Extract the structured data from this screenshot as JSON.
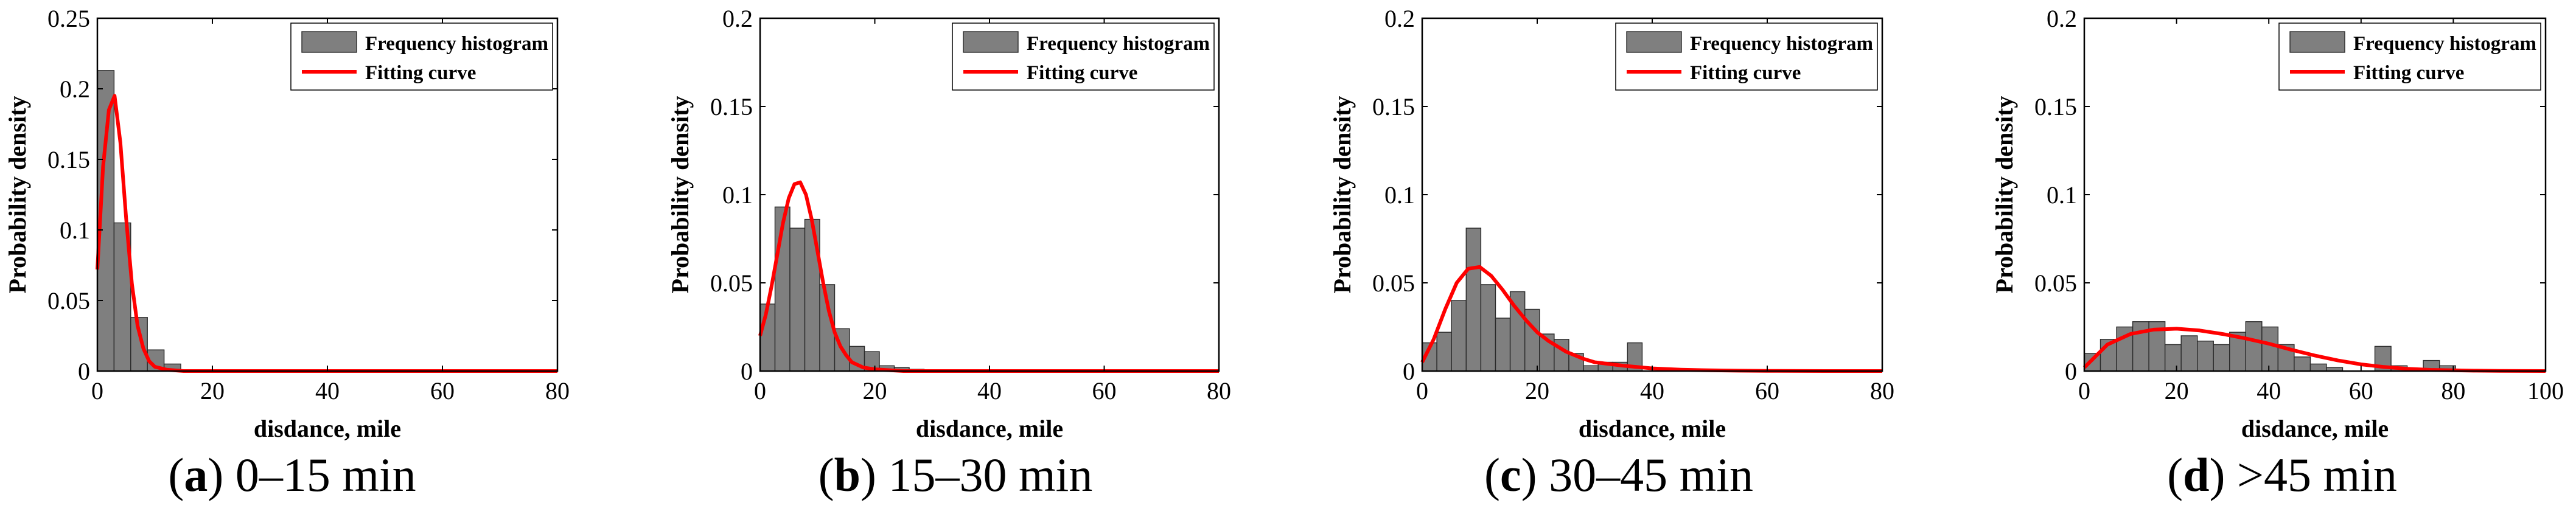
{
  "colors": {
    "bar": "#7f7f7f",
    "bar_edge": "#2a2a2a",
    "curve": "#ff0000",
    "axis": "#000000",
    "background": "#ffffff"
  },
  "chart_data": [
    {
      "type": "bar",
      "title": "",
      "caption_letter": "a",
      "caption_text": " 0–15 min",
      "xlabel": "disdance, mile",
      "ylabel": "Probability density",
      "xlim": [
        0,
        80
      ],
      "ylim": [
        0,
        0.25
      ],
      "xticks": [
        0,
        20,
        40,
        60,
        80
      ],
      "xtick_labels": [
        "0",
        "20",
        "40",
        "60",
        "80"
      ],
      "yticks": [
        0,
        0.05,
        0.1,
        0.15,
        0.2,
        0.25
      ],
      "ytick_labels": [
        "0",
        "0.05",
        "0.1",
        "0.15",
        "0.2",
        "0.25"
      ],
      "legend": {
        "position": "top-right",
        "entries": [
          "Frequency histogram",
          "Fitting curve"
        ]
      },
      "histogram": {
        "bin_width": 2.9,
        "bin_starts": [
          0,
          2.9,
          5.8,
          8.7,
          11.6
        ],
        "values": [
          0.213,
          0.105,
          0.038,
          0.015,
          0.005
        ]
      },
      "fit_curve": {
        "x": [
          0,
          1,
          2,
          3,
          4,
          5,
          6,
          7,
          8,
          9,
          10,
          12,
          15,
          20,
          30,
          40,
          60,
          80
        ],
        "y": [
          0.072,
          0.145,
          0.185,
          0.195,
          0.162,
          0.108,
          0.062,
          0.032,
          0.016,
          0.007,
          0.003,
          0.001,
          0.0,
          0.0,
          0.0,
          0.0,
          0.0,
          0.0
        ]
      }
    },
    {
      "type": "bar",
      "title": "",
      "caption_letter": "b",
      "caption_text": " 15–30 min",
      "xlabel": "disdance, mile",
      "ylabel": "Probability density",
      "xlim": [
        0,
        80
      ],
      "ylim": [
        0,
        0.2
      ],
      "xticks": [
        0,
        20,
        40,
        60,
        80
      ],
      "xtick_labels": [
        "0",
        "20",
        "40",
        "60",
        "80"
      ],
      "yticks": [
        0,
        0.05,
        0.1,
        0.15,
        0.2
      ],
      "ytick_labels": [
        "0",
        "0.05",
        "0.1",
        "0.15",
        "0.2"
      ],
      "legend": {
        "position": "top-right",
        "entries": [
          "Frequency histogram",
          "Fitting curve"
        ]
      },
      "histogram": {
        "bin_width": 2.6,
        "bin_starts": [
          0,
          2.6,
          5.2,
          7.8,
          10.4,
          13.0,
          15.6,
          18.2,
          20.8,
          23.4,
          26.0
        ],
        "values": [
          0.038,
          0.093,
          0.081,
          0.086,
          0.049,
          0.024,
          0.014,
          0.011,
          0.003,
          0.002,
          0.001
        ]
      },
      "fit_curve": {
        "x": [
          0,
          1,
          2,
          3,
          4,
          5,
          6,
          7,
          8,
          9,
          10,
          11,
          12,
          13,
          14,
          15,
          16,
          18,
          20,
          25,
          30,
          40,
          60,
          80
        ],
        "y": [
          0.02,
          0.032,
          0.048,
          0.066,
          0.084,
          0.098,
          0.106,
          0.107,
          0.1,
          0.086,
          0.068,
          0.05,
          0.034,
          0.022,
          0.014,
          0.009,
          0.005,
          0.002,
          0.001,
          0.0,
          0.0,
          0.0,
          0.0,
          0.0
        ]
      }
    },
    {
      "type": "bar",
      "title": "",
      "caption_letter": "c",
      "caption_text": " 30–45 min",
      "xlabel": "disdance, mile",
      "ylabel": "Probability density",
      "xlim": [
        0,
        80
      ],
      "ylim": [
        0,
        0.2
      ],
      "xticks": [
        0,
        20,
        40,
        60,
        80
      ],
      "xtick_labels": [
        "0",
        "20",
        "40",
        "60",
        "80"
      ],
      "yticks": [
        0,
        0.05,
        0.1,
        0.15,
        0.2
      ],
      "ytick_labels": [
        "0",
        "0.05",
        "0.1",
        "0.15",
        "0.2"
      ],
      "legend": {
        "position": "top-right",
        "entries": [
          "Frequency histogram",
          "Fitting curve"
        ]
      },
      "histogram": {
        "bin_width": 2.55,
        "bin_starts": [
          0,
          2.55,
          5.1,
          7.65,
          10.2,
          12.75,
          15.3,
          17.85,
          20.4,
          22.95,
          25.5,
          28.05,
          30.6,
          33.15,
          35.7
        ],
        "values": [
          0.016,
          0.022,
          0.04,
          0.081,
          0.049,
          0.03,
          0.045,
          0.035,
          0.021,
          0.018,
          0.01,
          0.003,
          0.005,
          0.005,
          0.016
        ]
      },
      "fit_curve": {
        "x": [
          0,
          2,
          4,
          6,
          8,
          10,
          12,
          14,
          16,
          18,
          20,
          22,
          25,
          28,
          30,
          35,
          40,
          45,
          50,
          55,
          60,
          70,
          80
        ],
        "y": [
          0.005,
          0.018,
          0.035,
          0.05,
          0.058,
          0.059,
          0.054,
          0.046,
          0.037,
          0.029,
          0.022,
          0.017,
          0.011,
          0.007,
          0.005,
          0.003,
          0.0015,
          0.0008,
          0.0004,
          0.0002,
          0.0001,
          0.0,
          0.0
        ]
      }
    },
    {
      "type": "bar",
      "title": "",
      "caption_letter": "d",
      "caption_text": " >45 min",
      "xlabel": "disdance, mile",
      "ylabel": "Probability density",
      "xlim": [
        0,
        100
      ],
      "ylim": [
        0,
        0.2
      ],
      "xticks": [
        0,
        20,
        40,
        60,
        80,
        100
      ],
      "xtick_labels": [
        "0",
        "20",
        "40",
        "60",
        "80",
        "100"
      ],
      "yticks": [
        0,
        0.05,
        0.1,
        0.15,
        0.2
      ],
      "ytick_labels": [
        "0",
        "0.05",
        "0.1",
        "0.15",
        "0.2"
      ],
      "legend": {
        "position": "top-right",
        "entries": [
          "Frequency histogram",
          "Fitting curve"
        ]
      },
      "histogram": {
        "bin_width": 3.5,
        "bin_starts": [
          0,
          3.5,
          7.0,
          10.5,
          14.0,
          17.5,
          21.0,
          24.5,
          28.0,
          31.5,
          35.0,
          38.5,
          42.0,
          45.5,
          49.0,
          52.5,
          56.0,
          59.5,
          63.0,
          66.5,
          70.0,
          73.5,
          77.0
        ],
        "values": [
          0.01,
          0.018,
          0.025,
          0.028,
          0.028,
          0.015,
          0.02,
          0.017,
          0.015,
          0.022,
          0.028,
          0.025,
          0.015,
          0.008,
          0.004,
          0.002,
          0.0,
          0.0,
          0.014,
          0.003,
          0.0,
          0.006,
          0.003
        ]
      },
      "fit_curve": {
        "x": [
          0,
          5,
          10,
          15,
          20,
          25,
          30,
          35,
          40,
          45,
          50,
          55,
          60,
          65,
          70,
          75,
          80,
          85,
          90,
          100
        ],
        "y": [
          0.002,
          0.015,
          0.021,
          0.0235,
          0.024,
          0.023,
          0.021,
          0.0185,
          0.0155,
          0.012,
          0.0088,
          0.006,
          0.0038,
          0.0023,
          0.0013,
          0.0007,
          0.0004,
          0.0002,
          0.0001,
          0.0
        ]
      }
    }
  ]
}
